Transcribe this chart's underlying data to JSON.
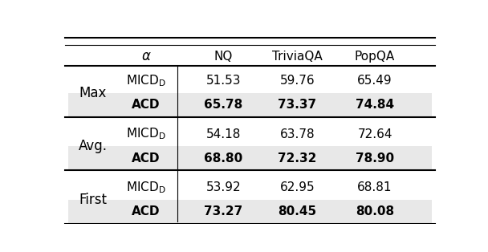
{
  "col_headers": [
    "α",
    "NQ",
    "TriviaQA",
    "PopQA"
  ],
  "row_groups": [
    {
      "group_label": "Max",
      "rows": [
        {
          "method": "MICD_D",
          "nq": "51.53",
          "trivia": "59.76",
          "pop": "65.49",
          "bold": false
        },
        {
          "method": "ACD",
          "nq": "65.78",
          "trivia": "73.37",
          "pop": "74.84",
          "bold": true
        }
      ]
    },
    {
      "group_label": "Avg.",
      "rows": [
        {
          "method": "MICD_D",
          "nq": "54.18",
          "trivia": "63.78",
          "pop": "72.64",
          "bold": false
        },
        {
          "method": "ACD",
          "nq": "68.80",
          "trivia": "72.32",
          "pop": "78.90",
          "bold": true
        }
      ]
    },
    {
      "group_label": "First",
      "rows": [
        {
          "method": "MICD_D",
          "nq": "53.92",
          "trivia": "62.95",
          "pop": "68.81",
          "bold": false
        },
        {
          "method": "ACD",
          "nq": "73.27",
          "trivia": "80.45",
          "pop": "80.08",
          "bold": true
        }
      ]
    }
  ],
  "highlight_color": "#e8e8e8",
  "bg_color": "#ffffff",
  "font_size": 11,
  "group_label_font_size": 12
}
